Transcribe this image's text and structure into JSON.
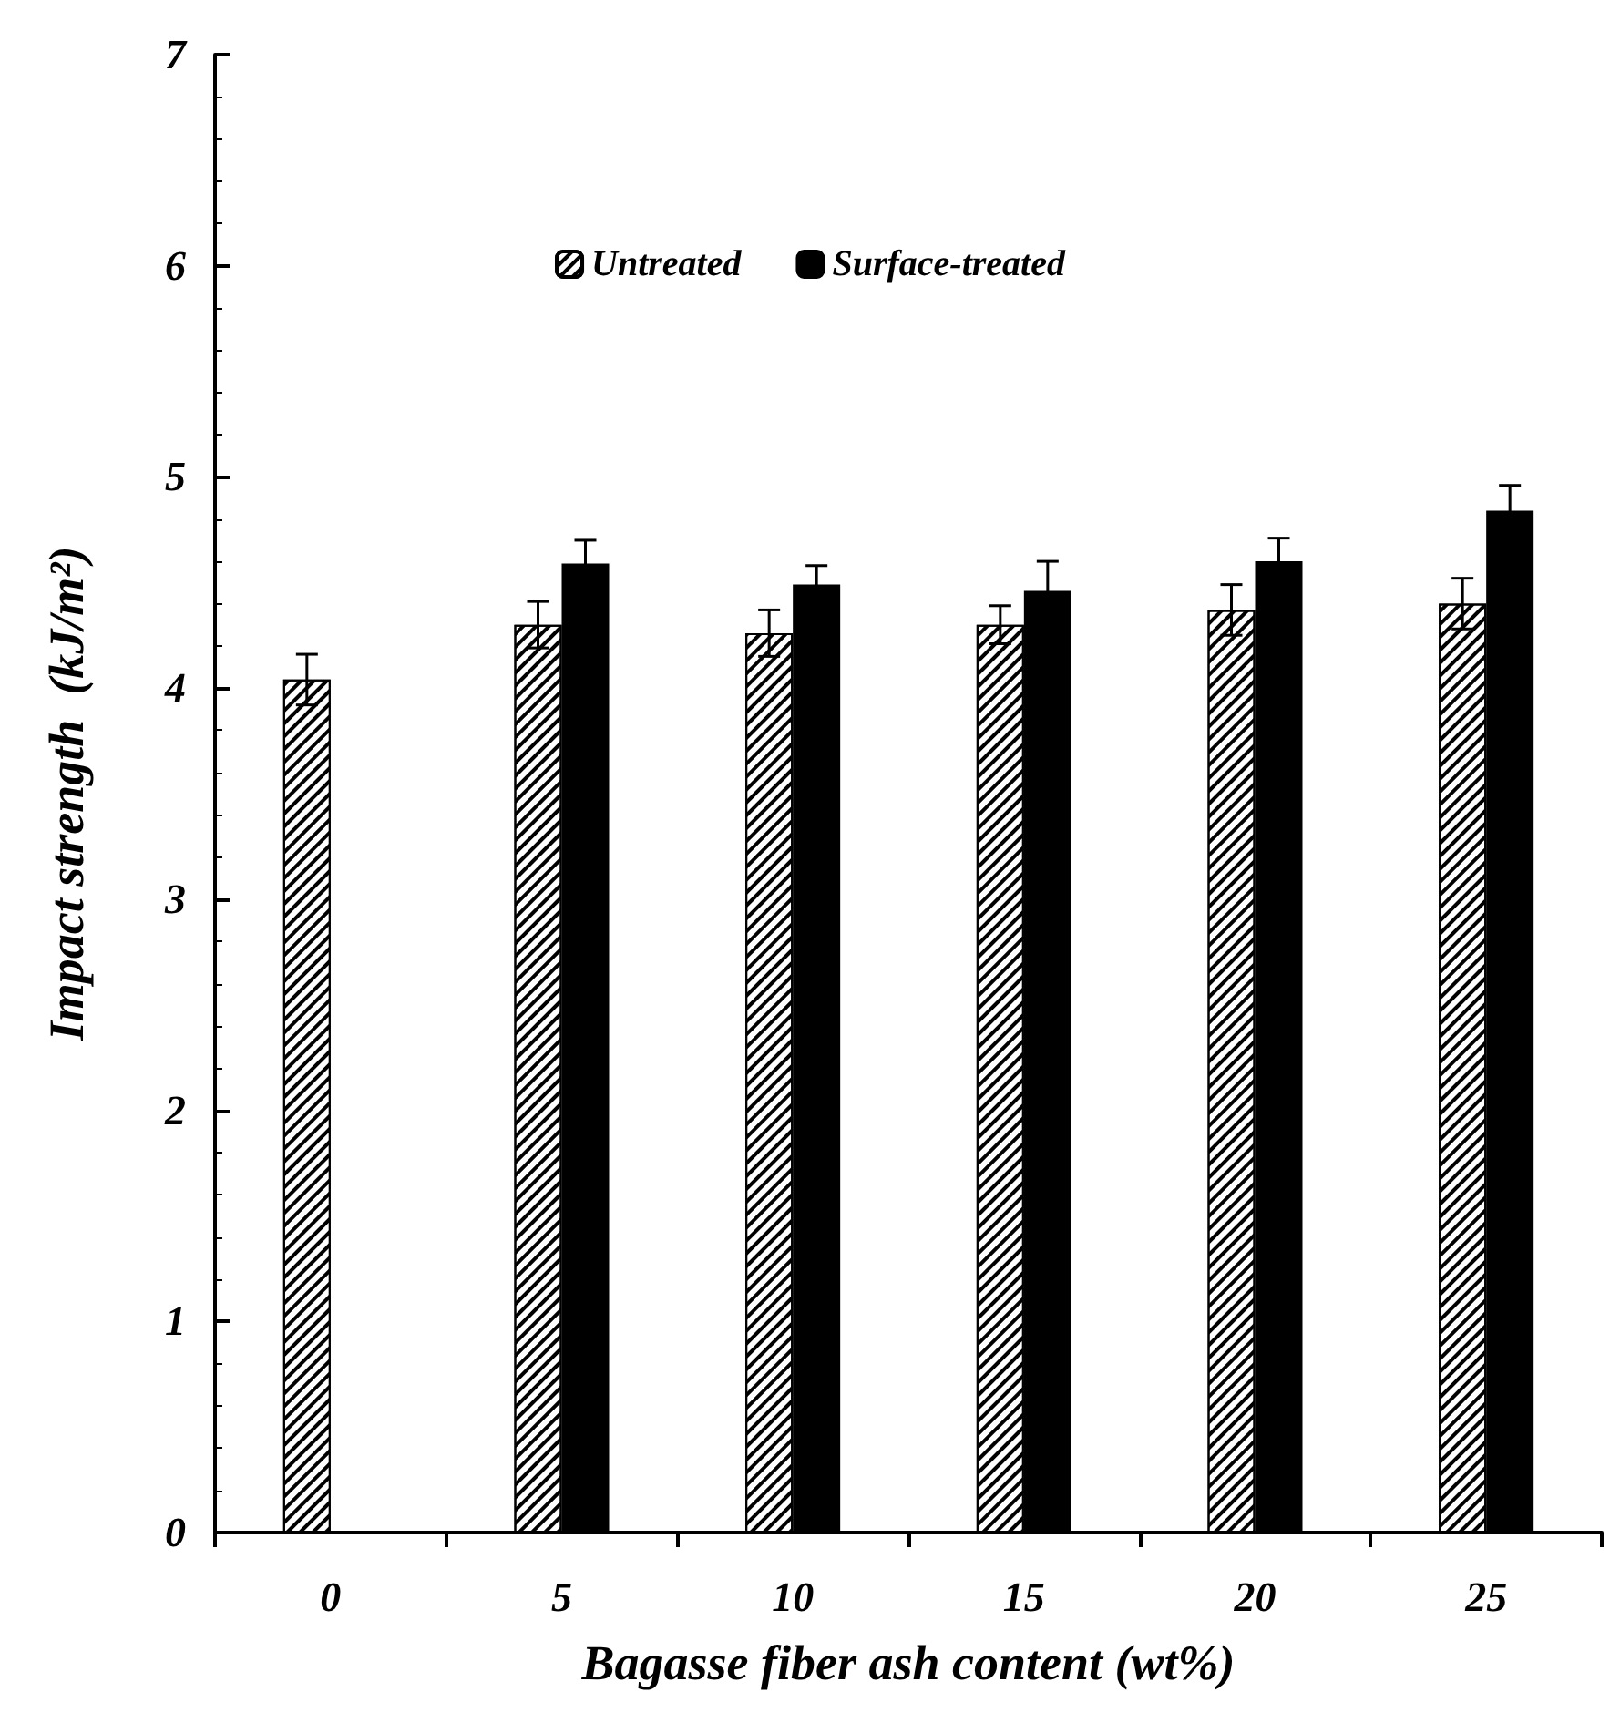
{
  "chart_data": {
    "type": "bar",
    "xlabel": "Bagasse fiber ash content (wt%)",
    "ylabel": "Impact strength  (kJ/m²)",
    "categories": [
      "0",
      "5",
      "10",
      "15",
      "20",
      "25"
    ],
    "series": [
      {
        "name": "Untreated",
        "color": "#ffffff",
        "values": [
          4.04,
          4.3,
          4.26,
          4.3,
          4.37,
          4.4
        ],
        "errors": [
          0.12,
          0.11,
          0.11,
          0.09,
          0.12,
          0.12
        ]
      },
      {
        "name": "Surface-treated",
        "color": "#000000",
        "values": [
          null,
          4.59,
          4.49,
          4.46,
          4.6,
          4.84
        ],
        "errors": [
          null,
          0.11,
          0.09,
          0.14,
          0.11,
          0.12
        ]
      }
    ],
    "ylim": [
      0,
      7
    ],
    "yticks": [
      0,
      1,
      2,
      3,
      4,
      5,
      6,
      7
    ],
    "grid": false,
    "legend": "top"
  }
}
